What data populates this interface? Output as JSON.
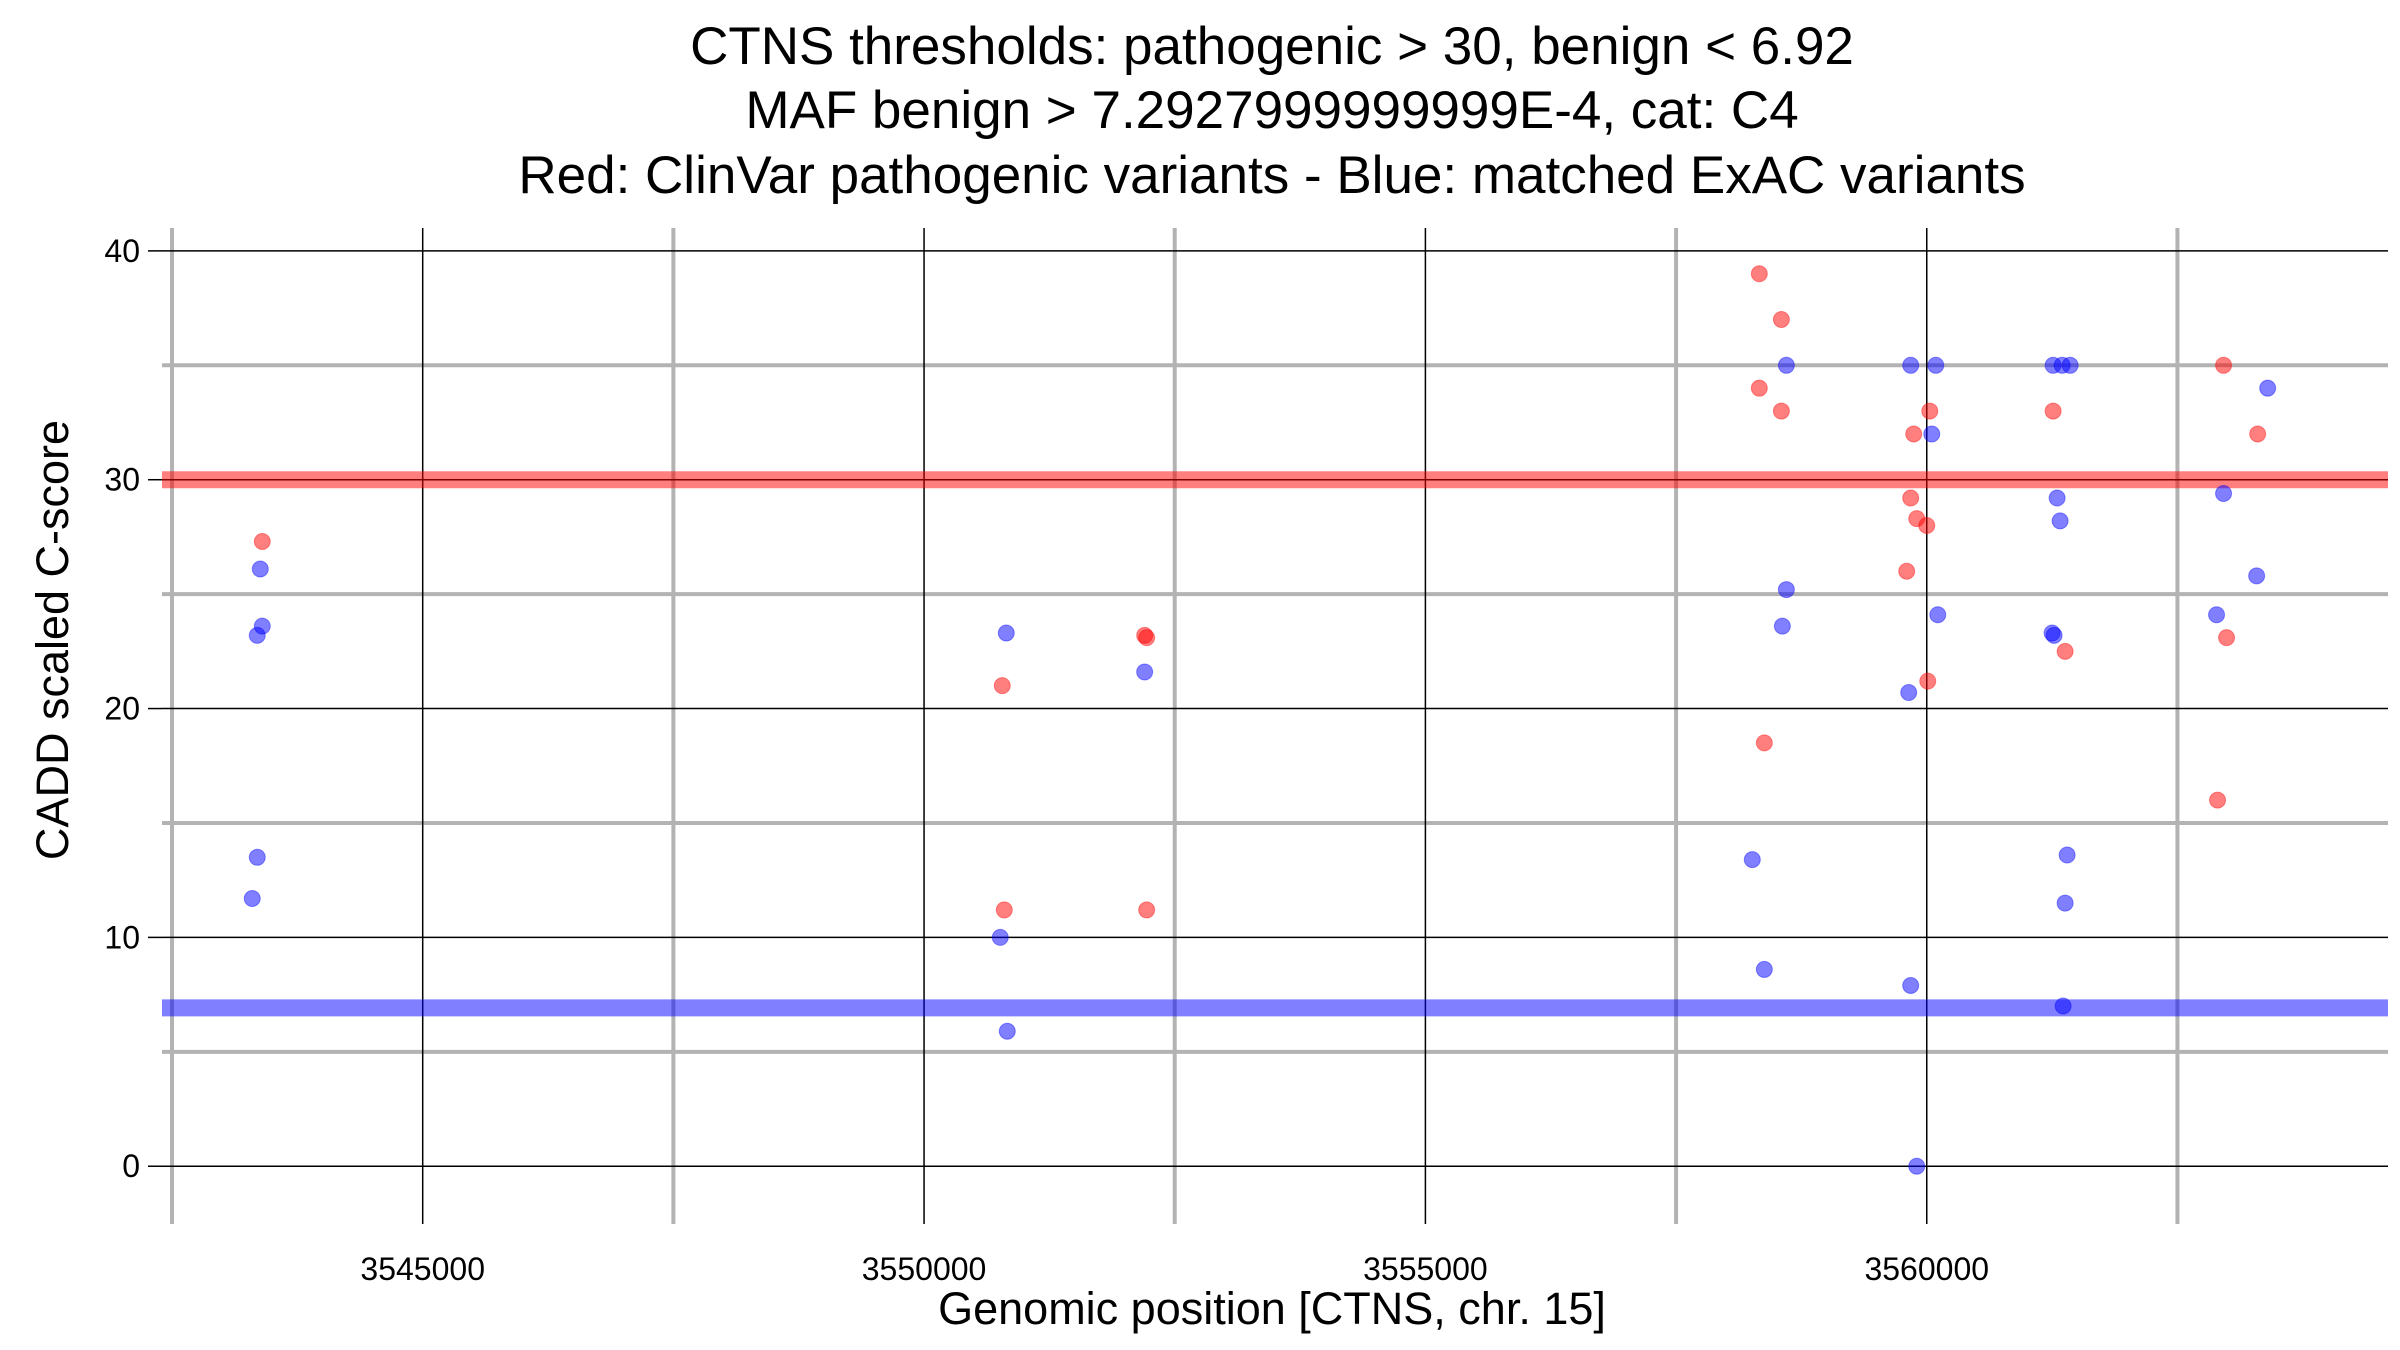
{
  "chart_data": {
    "type": "scatter",
    "title_lines": [
      "CTNS thresholds: pathogenic > 30, benign < 6.92",
      "MAF benign > 7.2927999999999E-4, cat: C4",
      "Red: ClinVar pathogenic variants - Blue: matched ExAC variants"
    ],
    "xlabel": "Genomic position [CTNS, chr. 15]",
    "ylabel": "CADD scaled C-score",
    "xlim": [
      3542400,
      3564600
    ],
    "ylim": [
      -2,
      41
    ],
    "x_ticks": [
      3545000,
      3550000,
      3555000,
      3560000
    ],
    "x_minor_ticks": [
      3542500,
      3547500,
      3552500,
      3557500,
      3562500
    ],
    "y_ticks": [
      0,
      10,
      20,
      30,
      40
    ],
    "y_minor_ticks": [
      5,
      15,
      25,
      35
    ],
    "grid": true,
    "thresholds": [
      {
        "name": "pathogenic",
        "value": 30,
        "color": "#ff0000"
      },
      {
        "name": "benign",
        "value": 6.92,
        "color": "#0000ff"
      }
    ],
    "series": [
      {
        "color": "#ff0000",
        "points": [
          [
            3543400,
            27.3
          ],
          [
            3550780,
            21.0
          ],
          [
            3550800,
            11.2
          ],
          [
            3552200,
            23.2
          ],
          [
            3552220,
            23.1
          ],
          [
            3552220,
            11.2
          ],
          [
            3558330,
            39.0
          ],
          [
            3558550,
            37.0
          ],
          [
            3558330,
            34.0
          ],
          [
            3558550,
            33.0
          ],
          [
            3558380,
            18.5
          ],
          [
            3559800,
            26.0
          ],
          [
            3559840,
            29.2
          ],
          [
            3559870,
            32.0
          ],
          [
            3559900,
            28.3
          ],
          [
            3560000,
            28.0
          ],
          [
            3560030,
            33.0
          ],
          [
            3560010,
            21.2
          ],
          [
            3561260,
            33.0
          ],
          [
            3561380,
            22.5
          ],
          [
            3562960,
            35.0
          ],
          [
            3563300,
            32.0
          ],
          [
            3562900,
            16.0
          ],
          [
            3562990,
            23.1
          ]
        ]
      },
      {
        "color": "#0000ff",
        "points": [
          [
            3543380,
            26.1
          ],
          [
            3543400,
            23.6
          ],
          [
            3543350,
            23.2
          ],
          [
            3543350,
            13.5
          ],
          [
            3543300,
            11.7
          ],
          [
            3550820,
            23.3
          ],
          [
            3550760,
            10.0
          ],
          [
            3550830,
            5.9
          ],
          [
            3552200,
            21.6
          ],
          [
            3558600,
            35.0
          ],
          [
            3558600,
            25.2
          ],
          [
            3558560,
            23.6
          ],
          [
            3558260,
            13.4
          ],
          [
            3558380,
            8.6
          ],
          [
            3559840,
            35.0
          ],
          [
            3560090,
            35.0
          ],
          [
            3560050,
            32.0
          ],
          [
            3560110,
            24.1
          ],
          [
            3559820,
            20.7
          ],
          [
            3559840,
            7.9
          ],
          [
            3559900,
            0.0
          ],
          [
            3561260,
            35.0
          ],
          [
            3561350,
            35.0
          ],
          [
            3561430,
            35.0
          ],
          [
            3561300,
            29.2
          ],
          [
            3561330,
            28.2
          ],
          [
            3561250,
            23.3
          ],
          [
            3561270,
            23.2
          ],
          [
            3561400,
            13.6
          ],
          [
            3561380,
            11.5
          ],
          [
            3561360,
            7.0
          ],
          [
            3563400,
            34.0
          ],
          [
            3562960,
            29.4
          ],
          [
            3563290,
            25.8
          ],
          [
            3562890,
            24.1
          ]
        ]
      }
    ]
  }
}
